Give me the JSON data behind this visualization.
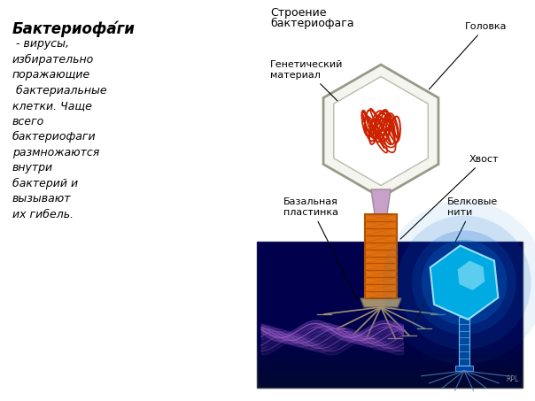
{
  "bg_color": "#ffffff",
  "left_text_title": "Бактериофа́ги",
  "left_text_body": " - вирусы,\nизбирательно\nпоражающие\n бактериальные\nклетки. Чаще\nвсего\nбактериофаги\nразмножаются\nвнутри\nбактерий и\nвызывают\nих гибель.",
  "diagram_title": "Строение\nбактериофага",
  "label_golovka": "Головка",
  "label_genetic": "Генетический\nматериал",
  "label_hvost": "Хвост",
  "label_bazal": "Базальная\nпластинка",
  "label_belk": "Белковые\nнити",
  "photo_bg_dark": "#00004a",
  "photo_bg_mid": "#000080",
  "head_fill": "#f5f5f0",
  "head_edge": "#999988",
  "inner_fill": "#ffffff",
  "dna_color": "#cc2200",
  "neck_color": "#c9a0c9",
  "tail_color": "#e07010",
  "tail_edge": "#b05000",
  "bp_color": "#a09070",
  "leg_color": "#a09070",
  "photo_head_color": "#00ccff",
  "photo_glow": "#0044cc"
}
